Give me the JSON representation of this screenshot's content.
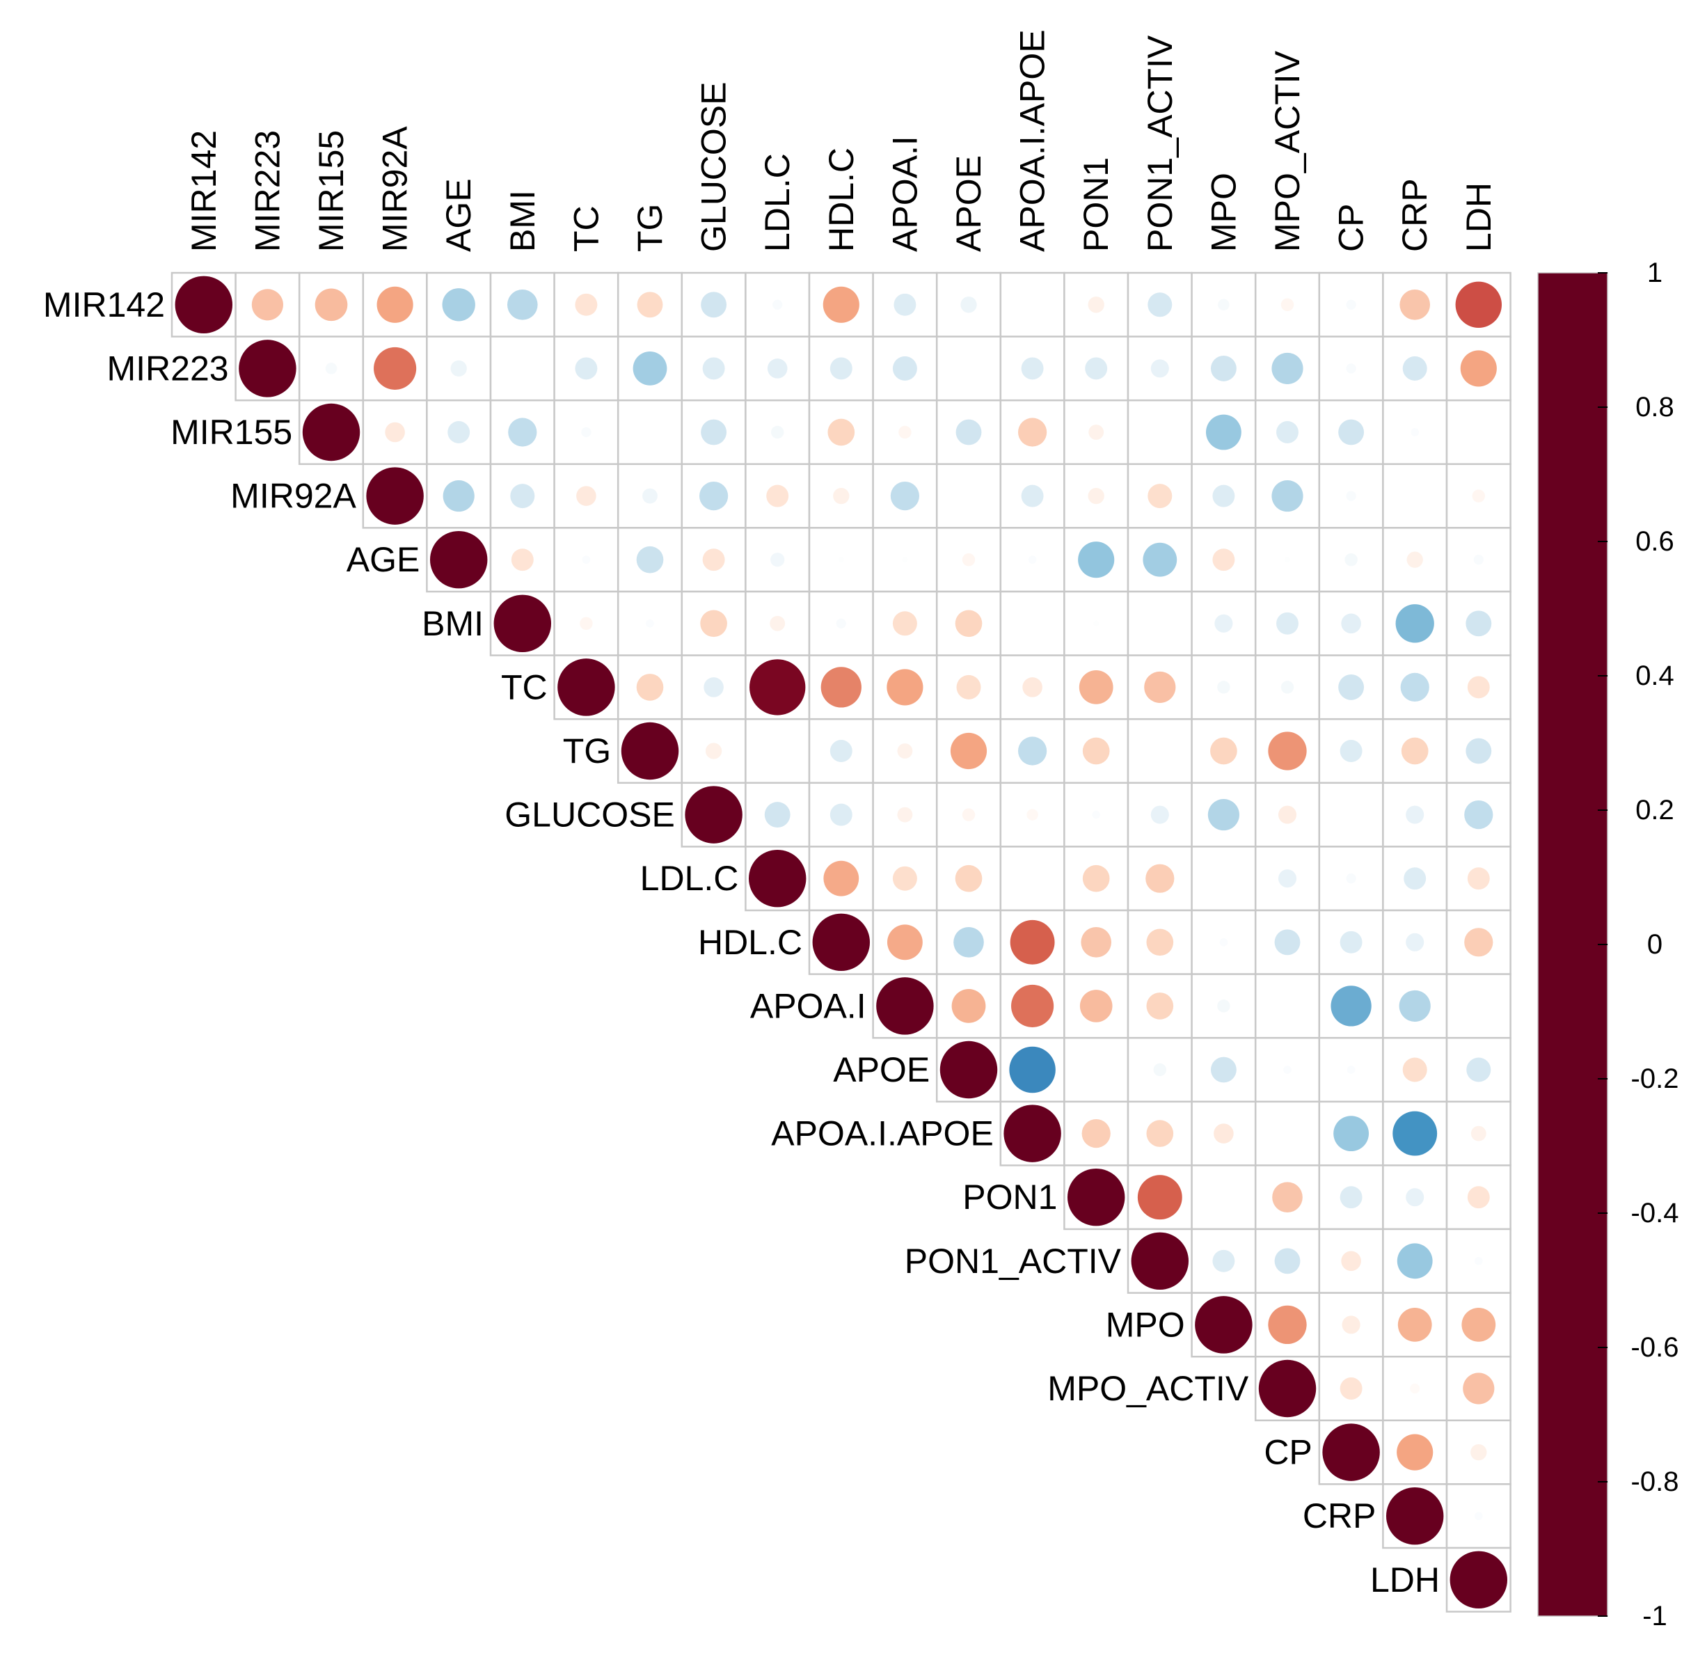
{
  "chart_data": {
    "type": "heatmap",
    "subtype": "correlation-circle-upper",
    "title": "",
    "variables": [
      "MIR142",
      "MIR223",
      "MIR155",
      "MIR92A",
      "AGE",
      "BMI",
      "TC",
      "TG",
      "GLUCOSE",
      "LDL.C",
      "HDL.C",
      "APOA.I",
      "APOE",
      "APOA.I.APOE",
      "PON1",
      "PON1_ACTIV",
      "MPO",
      "MPO_ACTIV",
      "CP",
      "CRP",
      "LDH"
    ],
    "matrix": [
      [
        1,
        0.3,
        0.32,
        0.4,
        -0.33,
        -0.28,
        0.15,
        0.2,
        -0.2,
        -0.03,
        0.4,
        -0.15,
        -0.08,
        0,
        0.08,
        -0.18,
        -0.04,
        0.05,
        -0.03,
        0.28,
        0.65
      ],
      [
        null,
        1,
        -0.04,
        0.55,
        -0.08,
        0,
        -0.15,
        -0.35,
        -0.15,
        -0.12,
        -0.15,
        -0.18,
        0,
        -0.15,
        -0.15,
        -0.1,
        -0.2,
        -0.3,
        -0.03,
        -0.18,
        0.4
      ],
      [
        null,
        null,
        1,
        0.12,
        -0.15,
        -0.25,
        -0.03,
        0,
        -0.2,
        -0.05,
        0.22,
        0.05,
        -0.2,
        0.25,
        0.07,
        0,
        -0.38,
        -0.15,
        -0.2,
        -0.02,
        0
      ],
      [
        null,
        null,
        null,
        1,
        -0.3,
        -0.18,
        0.12,
        -0.07,
        -0.25,
        0.15,
        0.08,
        -0.25,
        0,
        -0.15,
        0.08,
        0.18,
        -0.15,
        -0.3,
        -0.03,
        0,
        0.05
      ],
      [
        null,
        null,
        null,
        null,
        1,
        0.15,
        -0.02,
        -0.22,
        0.15,
        -0.06,
        -0.01,
        -0.01,
        0.05,
        -0.02,
        -0.4,
        -0.35,
        0.15,
        -0.01,
        -0.05,
        0.08,
        -0.03
      ],
      [
        null,
        null,
        null,
        null,
        null,
        1,
        0.05,
        -0.02,
        0.22,
        0.07,
        -0.03,
        0.18,
        0.22,
        0,
        -0.01,
        0,
        -0.1,
        -0.15,
        -0.12,
        -0.45,
        -0.2
      ],
      [
        null,
        null,
        null,
        null,
        null,
        null,
        1,
        0.22,
        -0.12,
        0.95,
        0.5,
        0.4,
        0.18,
        0.12,
        0.35,
        0.3,
        -0.05,
        -0.05,
        -0.2,
        -0.25,
        0.15
      ],
      [
        null,
        null,
        null,
        null,
        null,
        null,
        null,
        1,
        0.08,
        0,
        -0.15,
        0.07,
        0.4,
        -0.25,
        0.22,
        0,
        0.22,
        0.45,
        -0.15,
        0.22,
        -0.2
      ],
      [
        null,
        null,
        null,
        null,
        null,
        null,
        null,
        null,
        1,
        -0.2,
        -0.15,
        0.07,
        0.05,
        0.04,
        -0.02,
        -0.1,
        -0.3,
        0.1,
        0,
        -0.1,
        -0.25
      ],
      [
        null,
        null,
        null,
        null,
        null,
        null,
        null,
        null,
        null,
        1,
        0.38,
        0.18,
        0.22,
        0,
        0.22,
        0.25,
        0,
        -0.1,
        -0.03,
        -0.15,
        0.15
      ],
      [
        null,
        null,
        null,
        null,
        null,
        null,
        null,
        null,
        null,
        null,
        1,
        0.38,
        -0.28,
        0.6,
        0.28,
        0.22,
        -0.02,
        -0.2,
        -0.15,
        -0.1,
        0.25
      ],
      [
        null,
        null,
        null,
        null,
        null,
        null,
        null,
        null,
        null,
        null,
        null,
        1,
        0.35,
        0.55,
        0.32,
        0.22,
        -0.05,
        0,
        -0.5,
        -0.3,
        0
      ],
      [
        null,
        null,
        null,
        null,
        null,
        null,
        null,
        null,
        null,
        null,
        null,
        null,
        1,
        -0.65,
        0,
        -0.05,
        -0.2,
        -0.02,
        -0.02,
        0.18,
        -0.18
      ],
      [
        null,
        null,
        null,
        null,
        null,
        null,
        null,
        null,
        null,
        null,
        null,
        null,
        null,
        1,
        0.25,
        0.22,
        0.12,
        0,
        -0.38,
        -0.6,
        0.07
      ],
      [
        null,
        null,
        null,
        null,
        null,
        null,
        null,
        null,
        null,
        null,
        null,
        null,
        null,
        null,
        1,
        0.6,
        0,
        0.28,
        -0.15,
        -0.1,
        0.15
      ],
      [
        null,
        null,
        null,
        null,
        null,
        null,
        null,
        null,
        null,
        null,
        null,
        null,
        null,
        null,
        null,
        1,
        -0.15,
        -0.2,
        0.12,
        -0.38,
        -0.02
      ],
      [
        null,
        null,
        null,
        null,
        null,
        null,
        null,
        null,
        null,
        null,
        null,
        null,
        null,
        null,
        null,
        null,
        1,
        0.45,
        0.1,
        0.35,
        0.35
      ],
      [
        null,
        null,
        null,
        null,
        null,
        null,
        null,
        null,
        null,
        null,
        null,
        null,
        null,
        null,
        null,
        null,
        null,
        1,
        0.15,
        0.03,
        0.3
      ],
      [
        null,
        null,
        null,
        null,
        null,
        null,
        null,
        null,
        null,
        null,
        null,
        null,
        null,
        null,
        null,
        null,
        null,
        null,
        1,
        0.4,
        0.08
      ],
      [
        null,
        null,
        null,
        null,
        null,
        null,
        null,
        null,
        null,
        null,
        null,
        null,
        null,
        null,
        null,
        null,
        null,
        null,
        null,
        1,
        -0.02
      ],
      [
        null,
        null,
        null,
        null,
        null,
        null,
        null,
        null,
        null,
        null,
        null,
        null,
        null,
        null,
        null,
        null,
        null,
        null,
        null,
        null,
        1
      ]
    ],
    "colorbar": {
      "range": [
        -1,
        1
      ],
      "tick_labels": [
        "1",
        "0.8",
        "0.6",
        "0.4",
        "0.2",
        "0",
        "-0.2",
        "-0.4",
        "-0.6",
        "-0.8",
        "-1"
      ],
      "tick_values": [
        1,
        0.8,
        0.6,
        0.4,
        0.2,
        0,
        -0.2,
        -0.4,
        -0.6,
        -0.8,
        -1
      ],
      "colors": [
        "#67001F",
        "#B2182B",
        "#D6604D",
        "#F4A582",
        "#FDDBC7",
        "#FFFFFF",
        "#D1E5F0",
        "#92C5DE",
        "#4393C3",
        "#2166AC",
        "#053061"
      ]
    },
    "legend_position": "right"
  }
}
